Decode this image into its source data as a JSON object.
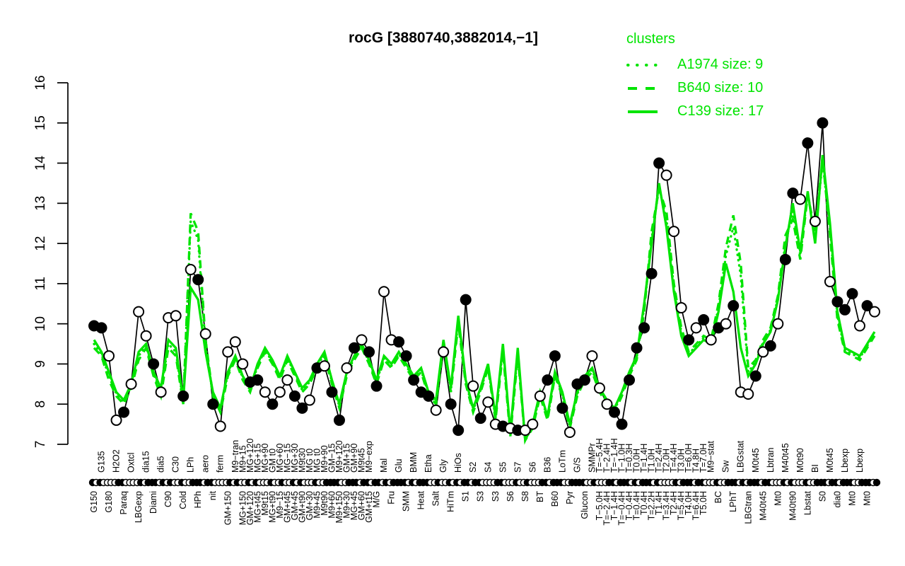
{
  "title": "rocG [3880740,3882014,−1]",
  "colors": {
    "cluster": "#00e400",
    "series": "#000000",
    "background": "#ffffff"
  },
  "legend": {
    "title": "clusters",
    "entries": [
      {
        "label": "A1974 size: 9",
        "style": "dotted"
      },
      {
        "label": "B640 size: 10",
        "style": "dashed"
      },
      {
        "label": "C139 size: 17",
        "style": "solid"
      }
    ]
  },
  "chart_data": {
    "type": "line",
    "title": "rocG [3880740,3882014,−1]",
    "ylabel": "",
    "xlabel": "",
    "ylim": [
      7,
      16
    ],
    "yticks": [
      7,
      8,
      9,
      10,
      11,
      12,
      13,
      14,
      15,
      16
    ],
    "grid": false,
    "legend_position": "top-right",
    "categories": [
      {
        "l": "G150",
        "r": "b"
      },
      {
        "l": "G135",
        "r": "t"
      },
      {
        "l": "G180",
        "r": "b"
      },
      {
        "l": "H2O2",
        "r": "t"
      },
      {
        "l": "Paraq",
        "r": "b"
      },
      {
        "l": "Oxtcl",
        "r": "t"
      },
      {
        "l": "LBGexp",
        "r": "b"
      },
      {
        "l": "dia15",
        "r": "t"
      },
      {
        "l": "Diami",
        "r": "b"
      },
      {
        "l": "dia5",
        "r": "t"
      },
      {
        "l": "C90",
        "r": "b"
      },
      {
        "l": "C30",
        "r": "t"
      },
      {
        "l": "Cold",
        "r": "b"
      },
      {
        "l": "LPh",
        "r": "t"
      },
      {
        "l": "HPh",
        "r": "b"
      },
      {
        "l": "aero",
        "r": "t"
      },
      {
        "l": "nit",
        "r": "b"
      },
      {
        "l": "ferm",
        "r": "t"
      },
      {
        "l": "GM+150",
        "r": "b"
      },
      {
        "l": "M9−tran",
        "r": "t"
      },
      {
        "l": "MG+150",
        "r": "b",
        "l2": "M9+15"
      },
      {
        "l": "MG+120",
        "r": "t",
        "l2": "GM+120"
      },
      {
        "l": "MG+t45",
        "r": "b",
        "l2": "MG+15"
      },
      {
        "l": "MG+90",
        "r": "t",
        "l2": "M9t15"
      },
      {
        "l": "MG+t90",
        "r": "b",
        "l2": "GM t0"
      },
      {
        "l": "MG+60",
        "r": "t",
        "l2": "M9−15"
      },
      {
        "l": "GM+t45",
        "r": "b",
        "l2": "MG−15"
      },
      {
        "l": "MG+30",
        "r": "t",
        "l2": "GM+45"
      },
      {
        "l": "GM+t90",
        "r": "b",
        "l2": "M9t30"
      },
      {
        "l": "MG t0",
        "r": "t",
        "l2": "GM+30"
      },
      {
        "l": "M9+45",
        "r": "b",
        "l2": "MG t0"
      },
      {
        "l": "M9+90",
        "r": "t",
        "l2": "M9t90"
      },
      {
        "l": "M9+60",
        "r": "b",
        "l2": "GM−15"
      },
      {
        "l": "M9+120",
        "r": "t",
        "l2": "M9+150"
      },
      {
        "l": "M9+30",
        "r": "b",
        "l2": "GM+15"
      },
      {
        "l": "GM+90",
        "r": "t",
        "l2": "MG+45"
      },
      {
        "l": "GM+60",
        "r": "b",
        "l2": "M9t45"
      },
      {
        "l": "M9−exp",
        "r": "t",
        "l2": "GM+t15"
      },
      {
        "l": "M/G",
        "r": "b"
      },
      {
        "l": "Mal",
        "r": "t"
      },
      {
        "l": "Fru",
        "r": "b"
      },
      {
        "l": "Glu",
        "r": "t"
      },
      {
        "l": "SMM",
        "r": "b"
      },
      {
        "l": "BMM",
        "r": "t"
      },
      {
        "l": "Heat",
        "r": "b"
      },
      {
        "l": "Etha",
        "r": "t"
      },
      {
        "l": "Salt",
        "r": "b"
      },
      {
        "l": "Gly",
        "r": "t"
      },
      {
        "l": "HiTm",
        "r": "b"
      },
      {
        "l": "HiOs",
        "r": "t"
      },
      {
        "l": "S1",
        "r": "b"
      },
      {
        "l": "S2",
        "r": "t"
      },
      {
        "l": "S3",
        "r": "b"
      },
      {
        "l": "S4",
        "r": "t"
      },
      {
        "l": "S3",
        "r": "b"
      },
      {
        "l": "S5",
        "r": "t"
      },
      {
        "l": "S6",
        "r": "b"
      },
      {
        "l": "S7",
        "r": "t"
      },
      {
        "l": "S8",
        "r": "b"
      },
      {
        "l": "S6",
        "r": "t"
      },
      {
        "l": "BT",
        "r": "b"
      },
      {
        "l": "B36",
        "r": "t"
      },
      {
        "l": "B60",
        "r": "b"
      },
      {
        "l": "LoTm",
        "r": "t"
      },
      {
        "l": "Pyr",
        "r": "b"
      },
      {
        "l": "G/S",
        "r": "t"
      },
      {
        "l": "Glucon",
        "r": "b"
      },
      {
        "l": "SMMPr",
        "r": "t"
      },
      {
        "l": "T−5.0H",
        "r": "b",
        "l2": "T=−5.4H"
      },
      {
        "l": "T−2.4H",
        "r": "t",
        "l2": "T=−2.4H"
      },
      {
        "l": "T−1.4H",
        "r": "b",
        "l2": "T=−1.4H"
      },
      {
        "l": "T−1.0H",
        "r": "t",
        "l2": "T=−0.4H"
      },
      {
        "l": "T−0.4H",
        "r": "b",
        "l2": "T=0.3H"
      },
      {
        "l": "T0.0H",
        "r": "t",
        "l2": "T=0.4H"
      },
      {
        "l": "T0.4H",
        "r": "b",
        "l2": "T=1.4H"
      },
      {
        "l": "T1.0H",
        "r": "t",
        "l2": "T=2.2H"
      },
      {
        "l": "T1.4H",
        "r": "b",
        "l2": "T=2.4H"
      },
      {
        "l": "T2.0H",
        "r": "t",
        "l2": "T=3.4H"
      },
      {
        "l": "T2.4H",
        "r": "b",
        "l2": "T=4.4H"
      },
      {
        "l": "T3.0H",
        "r": "t",
        "l2": "T=5.4H"
      },
      {
        "l": "T4.0H",
        "r": "b",
        "l2": "T=6.0H"
      },
      {
        "l": "T4.8H",
        "r": "t",
        "l2": "T=6.4H"
      },
      {
        "l": "T5.0H",
        "r": "b",
        "l2": "T=7.0H"
      },
      {
        "l": "M9−stat",
        "r": "t"
      },
      {
        "l": "BC",
        "r": "b"
      },
      {
        "l": "Sw",
        "r": "t"
      },
      {
        "l": "LPhT",
        "r": "b"
      },
      {
        "l": "LBGstat",
        "r": "t"
      },
      {
        "l": "LBGtran",
        "r": "b"
      },
      {
        "l": "M0t45",
        "r": "t"
      },
      {
        "l": "M40t45",
        "r": "b"
      },
      {
        "l": "Lbtran",
        "r": "t"
      },
      {
        "l": "Mt0",
        "r": "b"
      },
      {
        "l": "M40t45",
        "r": "t"
      },
      {
        "l": "M40t90",
        "r": "b"
      },
      {
        "l": "M0t90",
        "r": "t"
      },
      {
        "l": "Lbstat",
        "r": "b"
      },
      {
        "l": "BI",
        "r": "t"
      },
      {
        "l": "S0",
        "r": "b"
      },
      {
        "l": "M0t45",
        "r": "t"
      },
      {
        "l": "dia0",
        "r": "b"
      },
      {
        "l": "Lbexp",
        "r": "t"
      },
      {
        "l": "Mt0",
        "r": "b"
      },
      {
        "l": "Lbexp",
        "r": "t"
      },
      {
        "l": "Mt0",
        "r": "b"
      }
    ],
    "series": [
      {
        "name": "rocG",
        "role": "gene-profile",
        "color": "#000000",
        "style": "solid",
        "markers": true,
        "marker_fill": [
          1,
          1,
          0,
          0,
          1,
          0,
          0,
          0,
          1,
          0,
          0,
          0,
          1,
          0,
          1,
          0,
          1,
          0,
          0,
          0,
          0,
          1,
          1,
          0,
          1,
          0,
          0,
          1,
          1,
          0,
          1,
          0,
          1,
          1,
          0,
          1,
          0,
          1,
          1,
          0,
          0,
          1,
          1,
          1,
          1,
          1,
          0,
          0,
          1,
          1,
          1,
          0,
          1,
          0,
          0,
          1,
          0,
          1,
          0,
          0,
          0,
          1,
          1,
          1,
          0,
          1,
          1,
          0,
          0,
          0,
          1,
          1,
          1,
          1,
          1,
          1,
          1,
          0,
          0,
          0,
          1,
          0,
          1,
          0,
          1,
          0,
          1,
          0,
          0,
          1,
          0,
          1,
          0,
          1,
          1,
          0,
          1,
          0,
          1,
          0,
          1,
          1,
          1,
          0,
          1,
          0
        ],
        "values": [
          9.95,
          9.9,
          9.2,
          7.6,
          7.8,
          8.5,
          10.3,
          9.7,
          9.0,
          8.3,
          10.15,
          10.2,
          8.2,
          11.35,
          11.1,
          9.75,
          8.0,
          7.45,
          9.3,
          9.55,
          9.0,
          8.55,
          8.6,
          8.3,
          8.0,
          8.3,
          8.6,
          8.2,
          7.9,
          8.1,
          8.9,
          8.95,
          8.3,
          7.6,
          8.9,
          9.4,
          9.6,
          9.3,
          8.45,
          10.8,
          9.6,
          9.55,
          9.2,
          8.6,
          8.3,
          8.2,
          7.85,
          9.3,
          8.0,
          7.35,
          10.6,
          8.45,
          7.65,
          8.05,
          7.5,
          7.45,
          7.4,
          7.35,
          7.35,
          7.5,
          8.2,
          8.6,
          9.2,
          7.9,
          7.3,
          8.5,
          8.6,
          9.2,
          8.4,
          8.0,
          7.8,
          7.5,
          8.6,
          9.4,
          9.9,
          11.25,
          14.0,
          13.7,
          12.3,
          10.4,
          9.6,
          9.9,
          10.1,
          9.6,
          9.9,
          10.0,
          10.45,
          8.3,
          8.25,
          8.7,
          9.3,
          9.45,
          10.0,
          11.6,
          13.25,
          13.1,
          14.5,
          12.55,
          15.0,
          11.05,
          10.55,
          10.35,
          10.75,
          9.95,
          10.45,
          10.3
        ]
      },
      {
        "name": "A1974 size: 9",
        "role": "cluster-mean",
        "color": "#00e400",
        "style": "dotted",
        "markers": false,
        "values": [
          9.5,
          9.25,
          8.7,
          8.25,
          8.05,
          8.45,
          9.2,
          9.45,
          8.75,
          8.3,
          9.5,
          9.3,
          8.05,
          12.55,
          12.1,
          9.45,
          8.25,
          7.85,
          8.75,
          9.15,
          8.65,
          8.35,
          8.95,
          9.35,
          9.05,
          8.65,
          9.15,
          8.75,
          8.35,
          8.55,
          8.95,
          9.25,
          8.55,
          7.95,
          8.75,
          9.15,
          9.45,
          9.05,
          8.55,
          9.15,
          8.95,
          9.25,
          8.95,
          8.65,
          8.85,
          8.25,
          8.05,
          9.55,
          8.35,
          10.1,
          8.55,
          7.85,
          8.35,
          8.95,
          7.65,
          9.4,
          7.25,
          9.3,
          7.1,
          7.45,
          8.25,
          7.65,
          8.75,
          8.25,
          7.45,
          8.25,
          8.65,
          8.85,
          8.35,
          8.05,
          7.85,
          8.25,
          8.75,
          9.15,
          10.4,
          12.1,
          13.4,
          12.6,
          10.9,
          9.8,
          9.25,
          9.45,
          9.65,
          9.55,
          10.4,
          11.7,
          12.4,
          11.2,
          8.8,
          9.05,
          9.55,
          9.85,
          10.65,
          12.0,
          12.8,
          11.7,
          13.25,
          12.15,
          14.05,
          12.35,
          10.2,
          9.35,
          9.25,
          9.15,
          9.45,
          9.75
        ]
      },
      {
        "name": "B640 size: 10",
        "role": "cluster-mean",
        "color": "#00e400",
        "style": "dashed",
        "markers": false,
        "values": [
          9.4,
          9.2,
          8.6,
          8.2,
          8.0,
          8.4,
          9.1,
          9.4,
          8.7,
          8.2,
          9.4,
          9.2,
          8.0,
          12.75,
          12.3,
          9.6,
          8.2,
          7.8,
          8.7,
          9.1,
          8.6,
          8.3,
          8.9,
          9.3,
          9.0,
          8.6,
          9.1,
          8.7,
          8.3,
          8.5,
          8.9,
          9.2,
          8.5,
          7.9,
          8.7,
          9.1,
          9.4,
          9.0,
          8.5,
          9.1,
          8.9,
          9.2,
          8.9,
          8.6,
          8.8,
          8.2,
          8.0,
          9.5,
          8.3,
          10.0,
          8.5,
          7.8,
          8.3,
          8.9,
          7.6,
          9.3,
          7.2,
          9.2,
          7.1,
          7.4,
          8.2,
          7.6,
          8.7,
          8.2,
          7.4,
          8.2,
          8.6,
          8.8,
          8.3,
          8.0,
          7.8,
          8.2,
          8.7,
          9.1,
          10.3,
          12.3,
          13.35,
          12.8,
          11.0,
          9.9,
          9.3,
          9.5,
          9.7,
          9.6,
          10.5,
          11.9,
          12.7,
          11.5,
          8.9,
          9.1,
          9.6,
          9.9,
          10.7,
          12.2,
          12.6,
          11.6,
          13.2,
          12.3,
          14.15,
          12.2,
          10.1,
          9.3,
          9.2,
          9.1,
          9.4,
          9.7
        ]
      },
      {
        "name": "C139 size: 17",
        "role": "cluster-mean",
        "color": "#00e400",
        "style": "solid",
        "markers": false,
        "values": [
          9.6,
          9.3,
          8.8,
          8.3,
          8.1,
          8.5,
          9.3,
          9.5,
          8.8,
          8.4,
          9.6,
          9.4,
          8.1,
          10.9,
          10.6,
          9.3,
          8.3,
          7.9,
          8.8,
          9.2,
          8.7,
          8.4,
          9.0,
          9.4,
          9.1,
          8.7,
          9.2,
          8.8,
          8.4,
          8.6,
          9.0,
          9.3,
          8.6,
          8.0,
          8.8,
          9.2,
          9.5,
          9.1,
          8.6,
          9.2,
          9.0,
          9.3,
          9.0,
          8.7,
          8.9,
          8.3,
          8.1,
          9.6,
          8.4,
          10.2,
          8.6,
          7.9,
          8.4,
          9.0,
          7.7,
          9.5,
          7.3,
          9.4,
          7.1,
          7.5,
          8.3,
          7.7,
          8.8,
          8.3,
          7.5,
          8.3,
          8.7,
          8.9,
          8.4,
          8.1,
          7.9,
          8.3,
          8.8,
          9.2,
          10.5,
          12.0,
          13.5,
          12.4,
          10.8,
          9.7,
          9.2,
          9.4,
          9.6,
          9.5,
          10.3,
          11.5,
          10.8,
          9.4,
          8.7,
          9.0,
          9.5,
          9.8,
          10.6,
          11.9,
          13.0,
          11.8,
          13.3,
          12.0,
          14.2,
          12.5,
          10.3,
          9.4,
          9.3,
          9.2,
          9.5,
          9.8
        ]
      }
    ]
  }
}
